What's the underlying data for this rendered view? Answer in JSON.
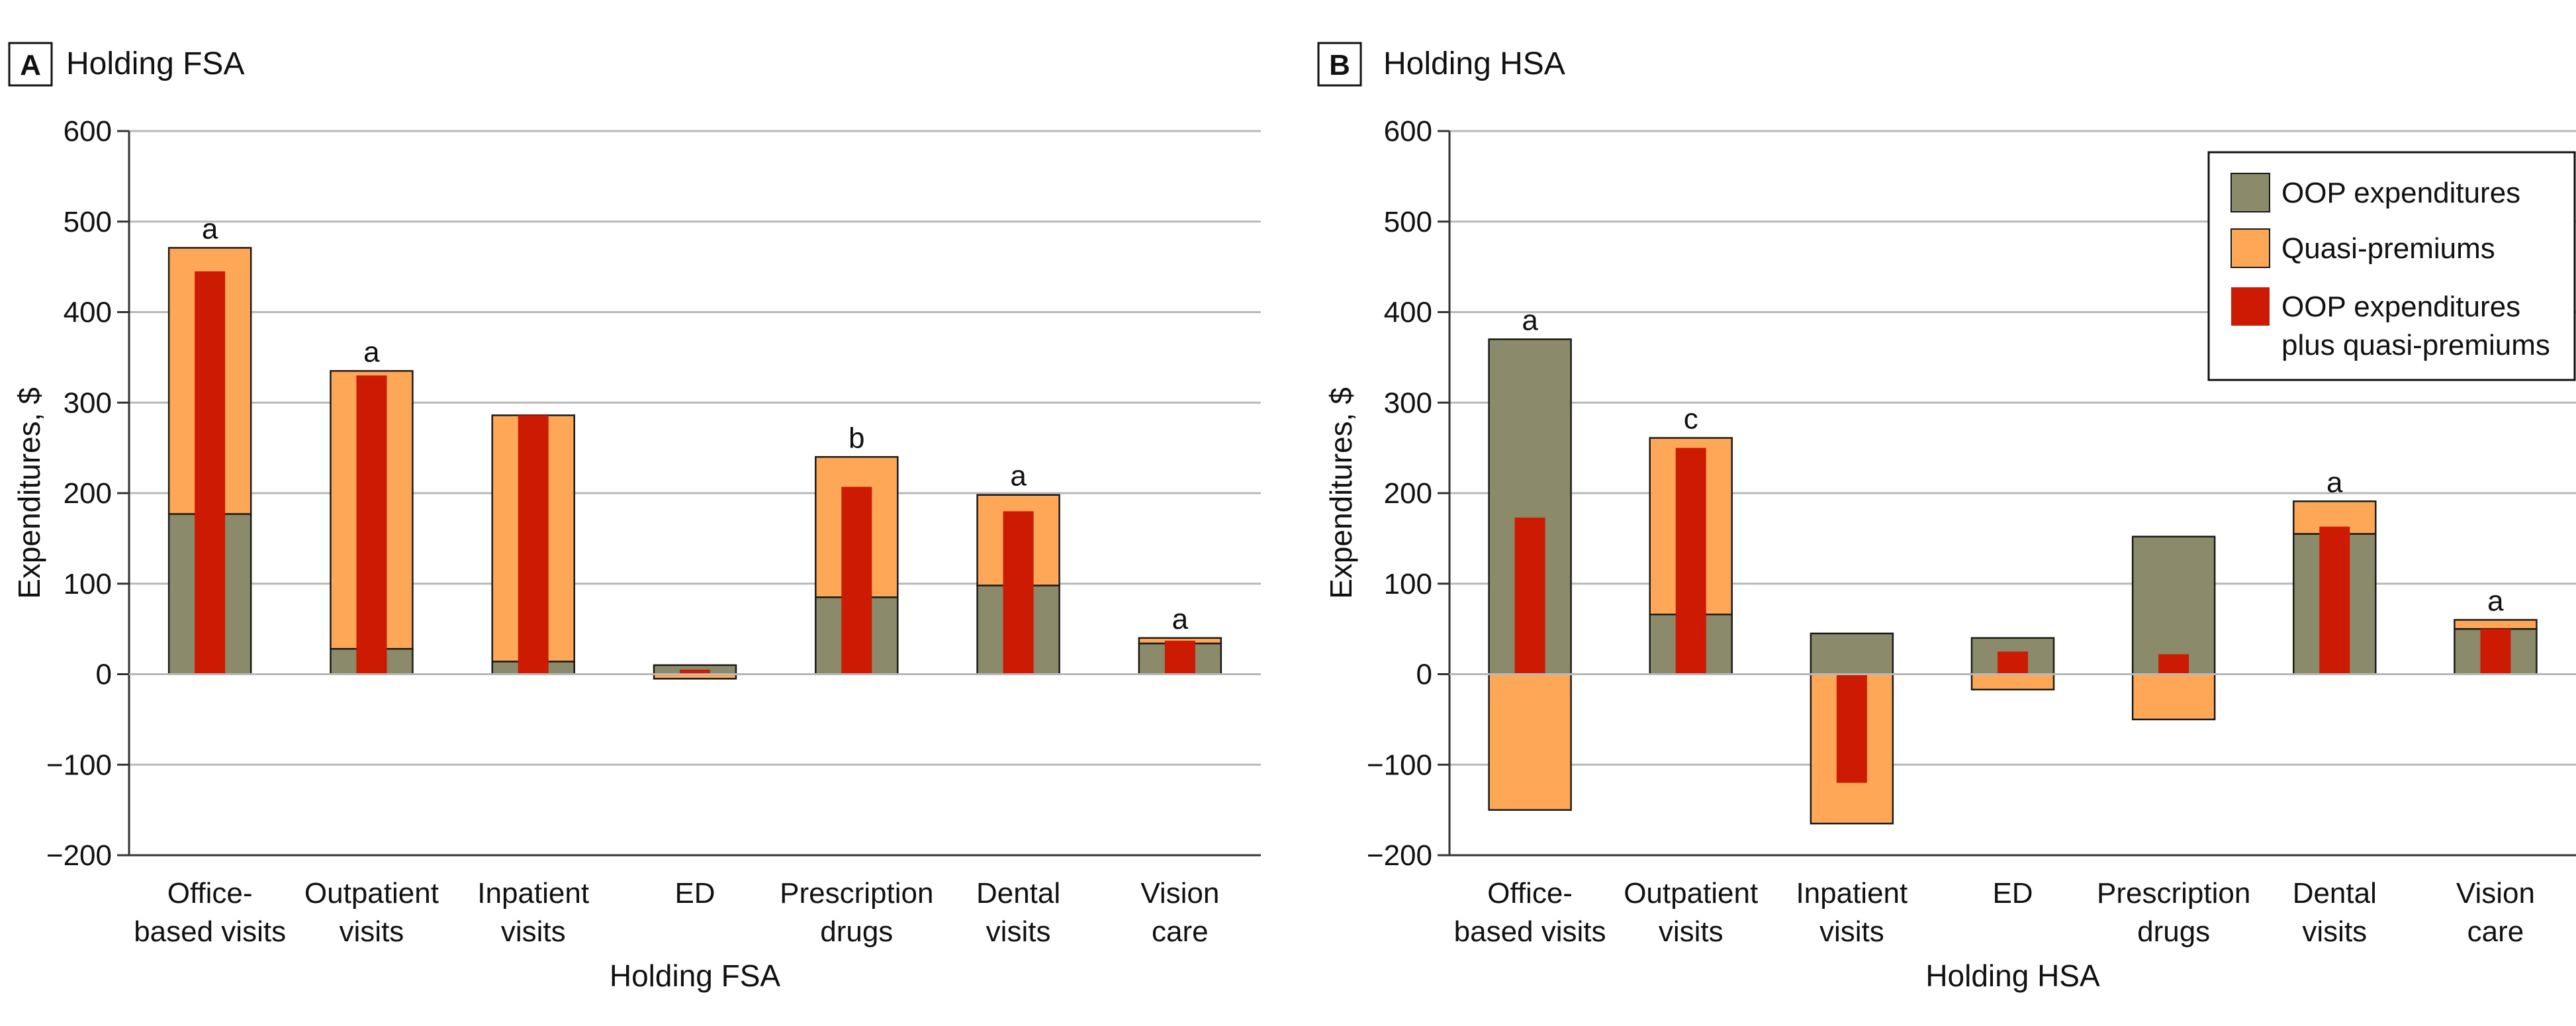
{
  "colors": {
    "oop": "#8b8a6a",
    "quasi": "#fea857",
    "total": "#cc1b02",
    "grid": "#b8b8b8",
    "axis": "#333333"
  },
  "legend": {
    "items": [
      {
        "key": "oop",
        "lines": [
          "OOP expenditures"
        ]
      },
      {
        "key": "quasi",
        "lines": [
          "Quasi-premiums"
        ]
      },
      {
        "key": "total",
        "lines": [
          "OOP expenditures",
          "plus quasi-premiums"
        ]
      }
    ]
  },
  "chart_data": [
    {
      "type": "bar",
      "panel_letter": "A",
      "title": "Holding FSA",
      "xlabel": "Holding FSA",
      "ylabel": "Expenditures, $",
      "ylim": [
        -200,
        600
      ],
      "yticks": [
        -200,
        -100,
        0,
        100,
        200,
        300,
        400,
        500,
        600
      ],
      "grid": true,
      "categories": [
        [
          "Office-",
          "based visits"
        ],
        [
          "Outpatient",
          "visits"
        ],
        [
          "Inpatient",
          "visits"
        ],
        [
          "ED"
        ],
        [
          "Prescription",
          "drugs"
        ],
        [
          "Dental",
          "visits"
        ],
        [
          "Vision",
          "care"
        ]
      ],
      "series": [
        {
          "name": "OOP expenditures",
          "key": "oop",
          "values": [
            177,
            28,
            14,
            10,
            85,
            98,
            34
          ]
        },
        {
          "name": "Quasi-premiums",
          "key": "quasi",
          "values": [
            294,
            307,
            272,
            -5,
            155,
            100,
            6
          ]
        },
        {
          "name": "OOP expenditures plus quasi-premiums",
          "key": "total",
          "values": [
            445,
            330,
            286,
            5,
            207,
            180,
            37
          ]
        }
      ],
      "significance": [
        "a",
        "a",
        "",
        "",
        "b",
        "a",
        "a"
      ]
    },
    {
      "type": "bar",
      "panel_letter": "B",
      "title": "Holding HSA",
      "xlabel": "Holding HSA",
      "ylabel": "Expenditures, $",
      "ylim": [
        -200,
        600
      ],
      "yticks": [
        -200,
        -100,
        0,
        100,
        200,
        300,
        400,
        500,
        600
      ],
      "grid": true,
      "legend_position": "top-right",
      "categories": [
        [
          "Office-",
          "based visits"
        ],
        [
          "Outpatient",
          "visits"
        ],
        [
          "Inpatient",
          "visits"
        ],
        [
          "ED"
        ],
        [
          "Prescription",
          "drugs"
        ],
        [
          "Dental",
          "visits"
        ],
        [
          "Vision",
          "care"
        ]
      ],
      "series": [
        {
          "name": "OOP expenditures",
          "key": "oop",
          "values": [
            370,
            66,
            45,
            40,
            152,
            155,
            50
          ]
        },
        {
          "name": "Quasi-premiums",
          "key": "quasi",
          "values": [
            -150,
            195,
            -165,
            -17,
            -50,
            36,
            10
          ]
        },
        {
          "name": "OOP expenditures plus quasi-premiums",
          "key": "total",
          "values": [
            173,
            250,
            -120,
            25,
            22,
            163,
            50
          ]
        }
      ],
      "significance": [
        "a",
        "c",
        "",
        "",
        "",
        "a",
        "a"
      ]
    }
  ]
}
